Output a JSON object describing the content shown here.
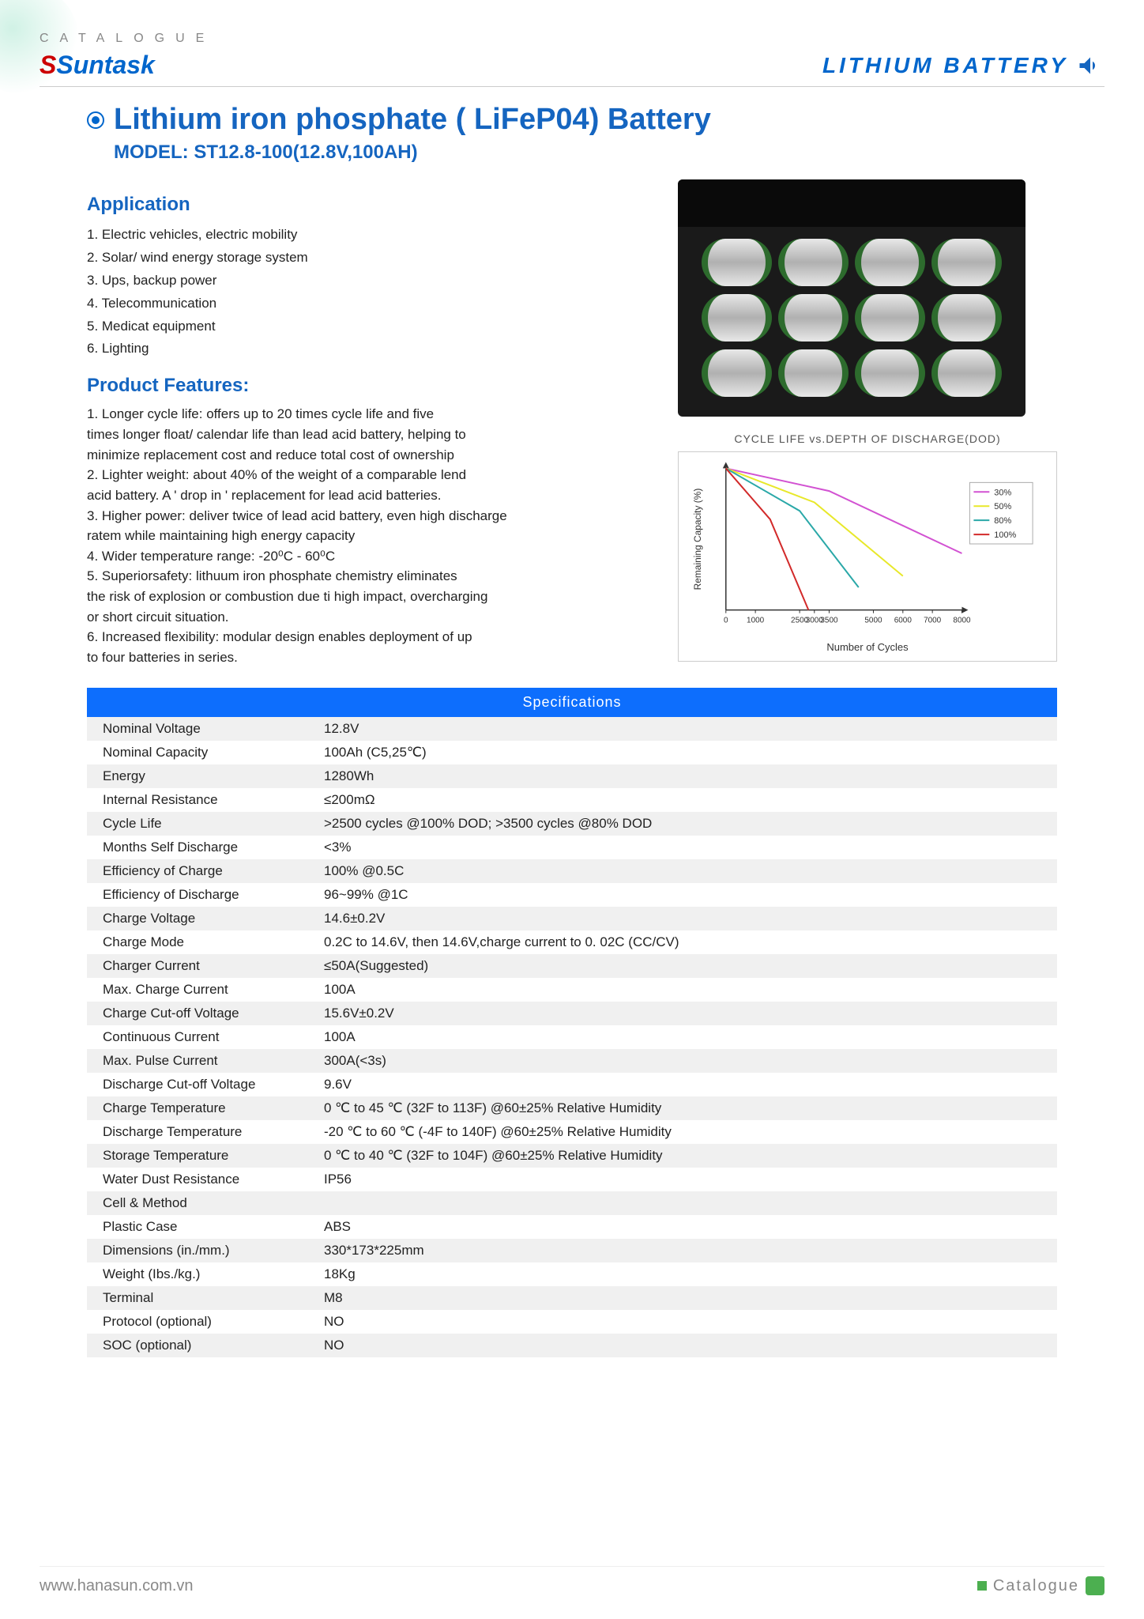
{
  "header": {
    "catalogue": "CATALOGUE",
    "brand_prefix": "S",
    "brand": "Suntask",
    "right": "LITHIUM BATTERY"
  },
  "title": "Lithium iron phosphate ( LiFeP04) Battery",
  "model": "MODEL: ST12.8-100(12.8V,100AH)",
  "application": {
    "heading": "Application",
    "items": [
      "1. Electric vehicles, electric mobility",
      "2. Solar/ wind energy storage system",
      "3. Ups, backup power",
      "4. Telecommunication",
      "5. Medicat equipment",
      "6. Lighting"
    ]
  },
  "features": {
    "heading": "Product Features:",
    "items": [
      "1. Longer cycle life: offers up to 20 times cycle life and five",
      "times longer float/ calendar life than lead acid battery, helping to",
      "minimize replacement cost and reduce total cost of ownership",
      "2. Lighter weight: about 40% of the weight of a comparable lend",
      "acid battery. A ' drop in ' replacement for lead acid batteries.",
      "3. Higher power: deliver twice of lead acid battery, even high discharge",
      "ratem while maintaining high energy capacity",
      "4. Wider temperature range: -20⁰C - 60⁰C",
      "5. Superiorsafety: lithuum iron phosphate chemistry eliminates",
      "the risk of explosion or combustion due ti high impact, overcharging",
      "or short circuit situation.",
      "6. Increased flexibility: modular design enables deployment of up",
      "to four batteries in series."
    ]
  },
  "chart": {
    "title": "CYCLE LIFE vs.DEPTH OF DISCHARGE(DOD)",
    "ylabel": "Remaining Capacity (%)",
    "xlabel": "Number of Cycles",
    "x_ticks": [
      "0",
      "1000",
      "2500",
      "3000",
      "3500",
      "5000",
      "6000",
      "7000",
      "8000"
    ],
    "x_tick_pos": [
      0,
      1000,
      2500,
      3000,
      3500,
      5000,
      6000,
      7000,
      8000
    ],
    "x_max": 8000,
    "series": [
      {
        "name": "30%",
        "color": "#d252d2",
        "points": [
          [
            0,
            100
          ],
          [
            3500,
            92
          ],
          [
            8000,
            70
          ]
        ]
      },
      {
        "name": "50%",
        "color": "#e8e82a",
        "points": [
          [
            0,
            100
          ],
          [
            3000,
            88
          ],
          [
            6000,
            62
          ]
        ]
      },
      {
        "name": "80%",
        "color": "#2aa8a8",
        "points": [
          [
            0,
            100
          ],
          [
            2500,
            85
          ],
          [
            4500,
            58
          ]
        ]
      },
      {
        "name": "100%",
        "color": "#d22a2a",
        "points": [
          [
            0,
            100
          ],
          [
            1500,
            82
          ],
          [
            2800,
            50
          ]
        ]
      }
    ]
  },
  "specs": {
    "heading": "Specifications",
    "rows": [
      {
        "label": "Nominal Voltage",
        "value": "12.8V"
      },
      {
        "label": "Nominal Capacity",
        "value": "100Ah   (C5,25℃)"
      },
      {
        "label": "Energy",
        "value": "1280Wh"
      },
      {
        "label": "Internal Resistance",
        "value": "≤200mΩ"
      },
      {
        "label": "Cycle Life",
        "value": ">2500 cycles @100% DOD; >3500 cycles @80% DOD"
      },
      {
        "label": "Months Self Discharge",
        "value": "<3%"
      },
      {
        "label": "Efficiency of Charge",
        "value": "100% @0.5C"
      },
      {
        "label": "Efficiency of Discharge",
        "value": "96~99% @1C"
      },
      {
        "label": "Charge Voltage",
        "value": "14.6±0.2V"
      },
      {
        "label": "Charge Mode",
        "value": "0.2C to 14.6V, then 14.6V,charge current to 0. 02C (CC/CV)"
      },
      {
        "label": "Charger Current",
        "value": "≤50A(Suggested)"
      },
      {
        "label": "Max. Charge Current",
        "value": "100A"
      },
      {
        "label": "Charge Cut-off Voltage",
        "value": "15.6V±0.2V"
      },
      {
        "label": "Continuous Current",
        "value": "100A"
      },
      {
        "label": "Max. Pulse Current",
        "value": "300A(<3s)"
      },
      {
        "label": "Discharge Cut-off Voltage",
        "value": "9.6V"
      },
      {
        "label": "Charge Temperature",
        "value": "0 ℃ to 45 ℃ (32F to 113F) @60±25% Relative Humidity"
      },
      {
        "label": "Discharge Temperature",
        "value": "-20 ℃ to 60 ℃ (-4F to 140F) @60±25% Relative Humidity"
      },
      {
        "label": "Storage Temperature",
        "value": "0 ℃ to 40 ℃ (32F to 104F) @60±25% Relative Humidity"
      },
      {
        "label": "Water Dust Resistance",
        "value": "IP56"
      },
      {
        "label": "Cell & Method",
        "value": ""
      },
      {
        "label": "Plastic Case",
        "value": "ABS"
      },
      {
        "label": "Dimensions (in./mm.)",
        "value": "330*173*225mm"
      },
      {
        "label": "Weight (Ibs./kg.)",
        "value": "18Kg"
      },
      {
        "label": "Terminal",
        "value": "M8"
      },
      {
        "label": "Protocol (optional)",
        "value": "NO"
      },
      {
        "label": "SOC (optional)",
        "value": "NO"
      }
    ]
  },
  "footer": {
    "url": "www.hanasun.com.vn",
    "right": "Catalogue"
  }
}
